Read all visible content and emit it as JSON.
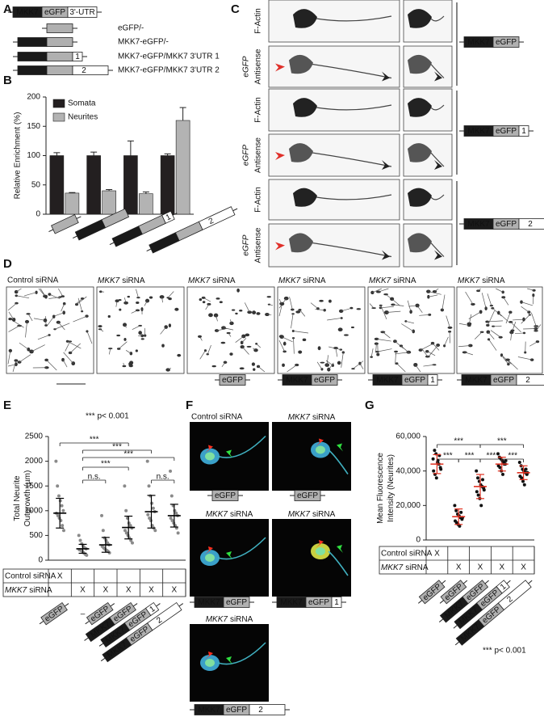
{
  "panel_labels": [
    "A",
    "B",
    "C",
    "D",
    "E",
    "F",
    "G"
  ],
  "constructs": {
    "mkk7": "MKK7",
    "egfp": "eGFP",
    "utr": "3'-UTR",
    "utr1": "1",
    "utr2": "2",
    "none": "–"
  },
  "panel_a": {
    "rows": [
      "eGFP/-",
      "MKK7-eGFP/-",
      "MKK7-eGFP/MKK7 3'UTR 1",
      "MKK7-eGFP/MKK7 3'UTR 2"
    ]
  },
  "panel_c": {
    "f_actin": "F-Actin",
    "egfp": "eGFP",
    "antisense": "Antisense"
  },
  "sirna": {
    "control": "Control siRNA",
    "mkk7": "MKK7",
    "word": "siRNA"
  },
  "table": {
    "control": "Control siRNA",
    "mark": "X"
  },
  "stats": {
    "p": "*** p< 0.001",
    "sig": "***",
    "ns": "n.s."
  },
  "chart_data": [
    {
      "type": "bar",
      "ylabel": [
        "Relative Enrichment (%)"
      ],
      "categories": [
        null,
        null,
        null,
        null
      ],
      "ylim": [
        0,
        200
      ],
      "yticks": [
        0,
        50,
        100,
        150,
        200
      ],
      "series": [
        {
          "name": "Somata",
          "color": "#231f20",
          "values": [
            100,
            100,
            100,
            100
          ],
          "errors": [
            5,
            6,
            25,
            3
          ]
        },
        {
          "name": "Neurites",
          "color": "#b3b3b3",
          "values": [
            36,
            40,
            35,
            160
          ],
          "errors": [
            1,
            2,
            3,
            22
          ]
        }
      ]
    },
    {
      "type": "scatter",
      "ylabel": [
        "Total Neurite",
        "Outgrowth (µm)"
      ],
      "ylim": [
        0,
        2500
      ],
      "yticks": [
        0,
        500,
        1000,
        1500,
        2000,
        2500
      ],
      "means": [
        950,
        230,
        310,
        660,
        980,
        900
      ],
      "sd": [
        300,
        90,
        150,
        230,
        330,
        230
      ],
      "point_color": "#8a8a8a",
      "mean_color": "#000000",
      "points": [
        [
          2000,
          1500,
          1300,
          1200,
          1100,
          1000,
          950,
          900,
          850,
          800,
          700,
          600
        ],
        [
          500,
          400,
          330,
          280,
          250,
          230,
          210,
          200,
          180,
          150,
          120,
          100
        ],
        [
          900,
          600,
          450,
          400,
          350,
          310,
          280,
          250,
          220,
          200,
          180,
          150
        ],
        [
          1500,
          1000,
          850,
          750,
          700,
          650,
          600,
          550,
          500,
          450,
          400,
          350
        ],
        [
          2000,
          1500,
          1300,
          1150,
          1050,
          980,
          920,
          850,
          800,
          700,
          650,
          600
        ],
        [
          1800,
          1300,
          1100,
          1000,
          950,
          900,
          850,
          800,
          750,
          700,
          650,
          550
        ]
      ]
    },
    {
      "type": "scatter",
      "ylabel": [
        "Mean Fluorescence",
        "Intensity (Neurites)"
      ],
      "ylim": [
        0,
        60000
      ],
      "yticks": [
        0,
        {
          "value": 20000,
          "label": "20,000"
        },
        {
          "value": 40000,
          "label": "40,000"
        },
        {
          "value": 60000,
          "label": "60,000"
        }
      ],
      "means": [
        44000,
        13500,
        31000,
        44000,
        39000
      ],
      "sd": [
        5500,
        4500,
        7000,
        4000,
        4000
      ],
      "point_color": "#111111",
      "mean_color": "#e03020",
      "points": [
        [
          47000,
          52000,
          50000,
          45000,
          44000,
          42000,
          40000,
          38000,
          36000,
          46000,
          49000,
          41000
        ],
        [
          20000,
          17000,
          15000,
          14000,
          13000,
          12000,
          11000,
          10000,
          9000,
          8000,
          16000,
          13000
        ],
        [
          40000,
          36000,
          34000,
          32000,
          31000,
          30000,
          28000,
          26000,
          24000,
          20000,
          35000,
          29000
        ],
        [
          50000,
          48000,
          47000,
          46000,
          45000,
          44000,
          43000,
          42000,
          40000,
          38000,
          44000,
          46000
        ],
        [
          45000,
          43000,
          41000,
          40000,
          39000,
          38000,
          37000,
          36000,
          34000,
          32000,
          41000,
          39000
        ]
      ]
    }
  ]
}
